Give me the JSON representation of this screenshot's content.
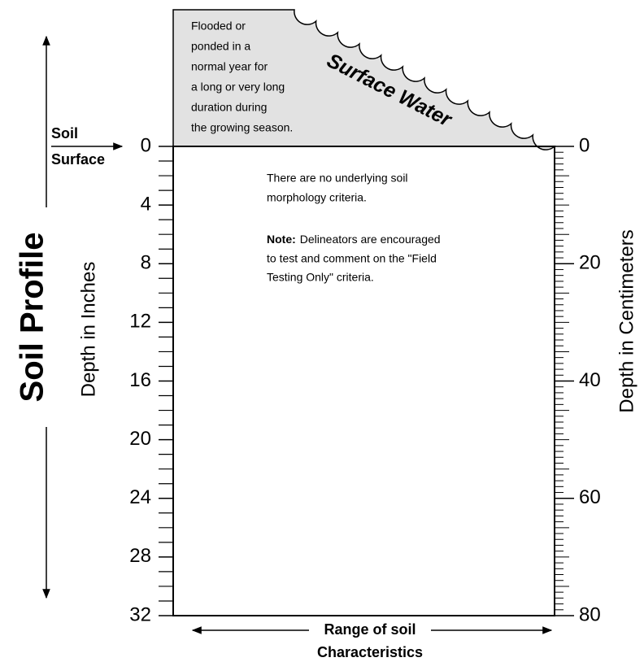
{
  "title": "Soil Profile",
  "left_axis": {
    "label": "Depth in Inches",
    "ticks": [
      0,
      4,
      8,
      12,
      16,
      20,
      24,
      28,
      32
    ]
  },
  "right_axis": {
    "label": "Depth in Centimeters",
    "ticks": [
      0,
      20,
      40,
      60,
      80
    ]
  },
  "soil_surface": [
    "Soil",
    "Surface"
  ],
  "surface_water": {
    "label": "Surface Water",
    "description": [
      "Flooded or",
      "ponded in a",
      "normal year for",
      "a long or very long",
      "duration during",
      "the growing season."
    ]
  },
  "body": {
    "lines": [
      "There are no underlying soil",
      "morphology criteria."
    ],
    "note": {
      "label": "Note:",
      "lines": [
        "Delineators are encouraged",
        "to test and comment on the \"Field",
        "Testing Only\" criteria."
      ]
    }
  },
  "x_axis": {
    "label": [
      "Range of soil",
      "Characteristics"
    ]
  }
}
